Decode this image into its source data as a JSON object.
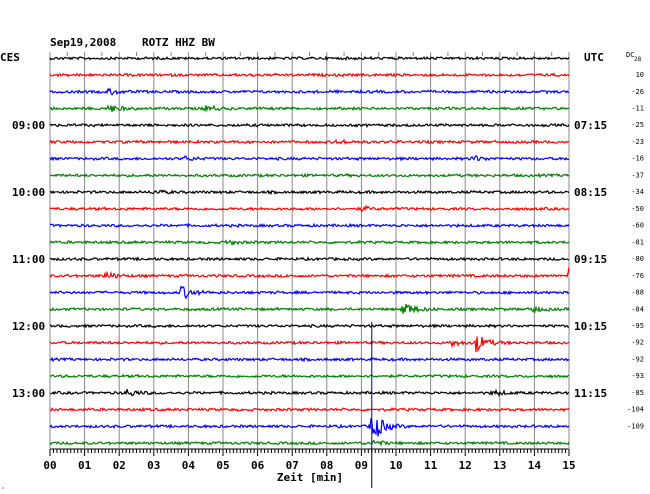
{
  "header": {
    "left_tz": "CES",
    "title": "Sep19,2008",
    "station": "ROTZ HHZ BW",
    "right_tz": "UTC",
    "dc_label": "DC",
    "dc_subscript": "28",
    "corner_mark": "‸"
  },
  "chart_data": {
    "type": "line",
    "xlabel": "Zeit [min]",
    "xlim": [
      0,
      15
    ],
    "x_ticks": [
      "00",
      "01",
      "02",
      "03",
      "04",
      "05",
      "06",
      "07",
      "08",
      "09",
      "10",
      "11",
      "12",
      "13",
      "14",
      "15"
    ],
    "trace_colors": [
      "#000000",
      "#ff0000",
      "#0000ff",
      "#008000"
    ],
    "left_time_labels": [
      {
        "row": 4,
        "label": "09:00"
      },
      {
        "row": 8,
        "label": "10:00"
      },
      {
        "row": 12,
        "label": "11:00"
      },
      {
        "row": 16,
        "label": "12:00"
      },
      {
        "row": 20,
        "label": "13:00"
      }
    ],
    "right_time_labels": [
      {
        "row": 4,
        "label": "07:15"
      },
      {
        "row": 8,
        "label": "08:15"
      },
      {
        "row": 12,
        "label": "09:15"
      },
      {
        "row": 16,
        "label": "10:15"
      },
      {
        "row": 20,
        "label": "11:15"
      }
    ],
    "dc_offsets": [
      "10",
      "-26",
      "-11",
      "-25",
      "-23",
      "-16",
      "-37",
      "-34",
      "-50",
      "-60",
      "-81",
      "-80",
      "-76",
      "-88",
      "-84",
      "-95",
      "-92",
      "-92",
      "-93",
      "-85",
      "-104",
      "-109"
    ],
    "events": [
      {
        "row": 2,
        "minute": 1.7,
        "amplitude": 3
      },
      {
        "row": 3,
        "minute": 1.7,
        "amplitude": 4
      },
      {
        "row": 3,
        "minute": 4.5,
        "amplitude": 3
      },
      {
        "row": 5,
        "minute": 8.3,
        "amplitude": 2
      },
      {
        "row": 6,
        "minute": 12.2,
        "amplitude": 3
      },
      {
        "row": 6,
        "minute": 3.9,
        "amplitude": 2
      },
      {
        "row": 8,
        "minute": 3.0,
        "amplitude": 2
      },
      {
        "row": 9,
        "minute": 9.0,
        "amplitude": 2
      },
      {
        "row": 11,
        "minute": 5.1,
        "amplitude": 2
      },
      {
        "row": 13,
        "minute": 1.6,
        "amplitude": 4
      },
      {
        "row": 13,
        "minute": 15.0,
        "amplitude": 14
      },
      {
        "row": 14,
        "minute": 3.8,
        "amplitude": 7
      },
      {
        "row": 15,
        "minute": 10.2,
        "amplitude": 8
      },
      {
        "row": 15,
        "minute": 13.9,
        "amplitude": 3
      },
      {
        "row": 17,
        "minute": 12.3,
        "amplitude": 10
      },
      {
        "row": 17,
        "minute": 11.6,
        "amplitude": 3
      },
      {
        "row": 20,
        "minute": 2.2,
        "amplitude": 4
      },
      {
        "row": 20,
        "minute": 12.8,
        "amplitude": 3
      },
      {
        "row": 22,
        "minute": 9.3,
        "amplitude": 18
      },
      {
        "row": 23,
        "minute": 9.3,
        "amplitude": 3
      }
    ],
    "big_event": {
      "row": 22,
      "minute": 9.3,
      "spike_from_row": 16,
      "spike_to_row": 23
    }
  }
}
